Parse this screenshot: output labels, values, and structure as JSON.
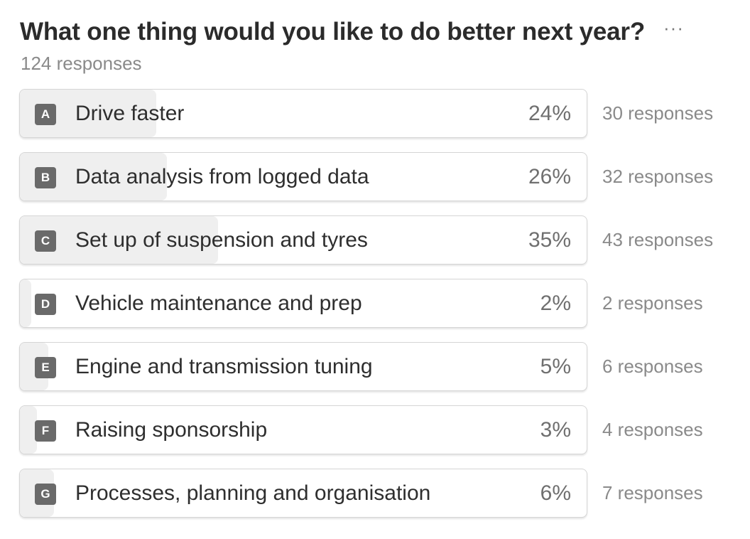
{
  "question": {
    "title": "What one thing would you like to do better next year?",
    "more_icon": "more-dots-icon",
    "more_glyph": "···",
    "total_responses": "124 responses"
  },
  "options": [
    {
      "letter": "A",
      "label": "Drive faster",
      "percent": "24%",
      "fraction": 0.24,
      "responses": "30 responses"
    },
    {
      "letter": "B",
      "label": "Data analysis from logged data",
      "percent": "26%",
      "fraction": 0.26,
      "responses": "32 responses"
    },
    {
      "letter": "C",
      "label": "Set up of suspension and tyres",
      "percent": "35%",
      "fraction": 0.35,
      "responses": "43 responses"
    },
    {
      "letter": "D",
      "label": "Vehicle maintenance and prep",
      "percent": "2%",
      "fraction": 0.02,
      "responses": "2 responses"
    },
    {
      "letter": "E",
      "label": "Engine and transmission tuning",
      "percent": "5%",
      "fraction": 0.05,
      "responses": "6 responses"
    },
    {
      "letter": "F",
      "label": "Raising sponsorship",
      "percent": "3%",
      "fraction": 0.03,
      "responses": "4 responses"
    },
    {
      "letter": "G",
      "label": "Processes, planning and organisation",
      "percent": "6%",
      "fraction": 0.06,
      "responses": "7 responses"
    }
  ],
  "colors": {
    "bar_fill": "#efefef",
    "letter_badge": "#6a6a6a"
  }
}
